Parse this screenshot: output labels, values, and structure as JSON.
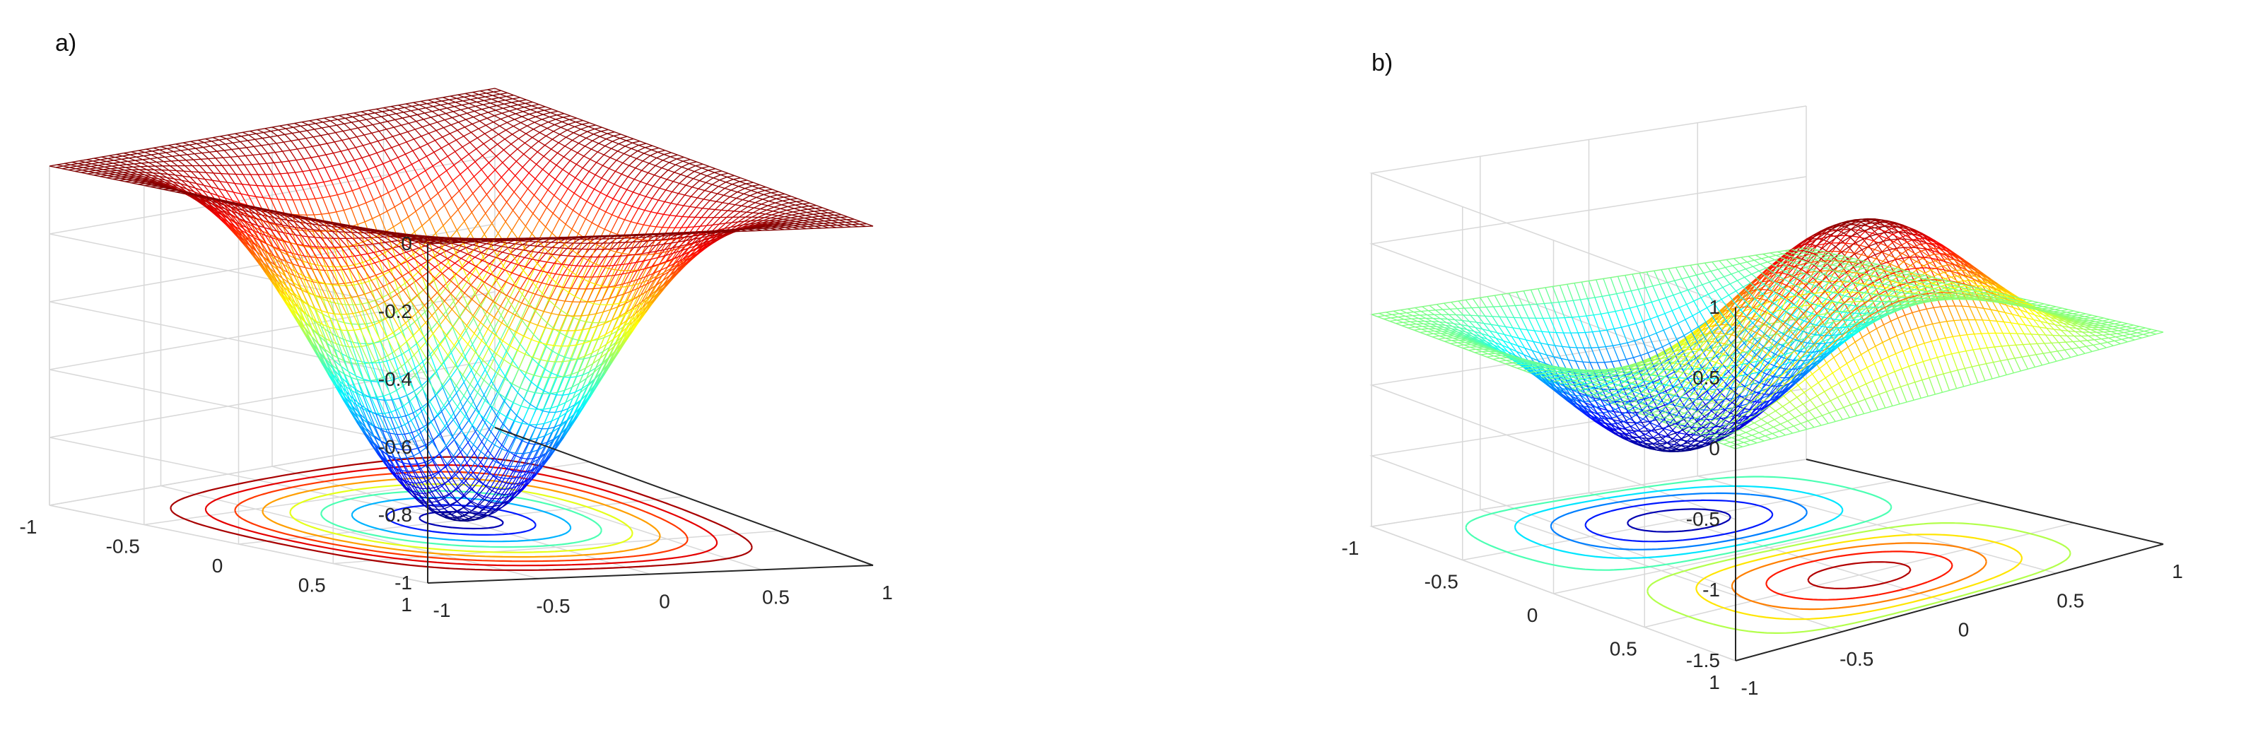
{
  "chart_data": [
    {
      "type": "surface",
      "panel_label": "a)",
      "function": "-cos(pi*x/2)^2 * cos(pi*y/2)^2",
      "x": [
        -1,
        1
      ],
      "y": [
        -1,
        1
      ],
      "xticks": [
        "-1",
        "-0.5",
        "0",
        "0.5",
        "1"
      ],
      "yticks": [
        "-1",
        "-0.5",
        "0",
        "0.5",
        "1"
      ],
      "zticks": [
        "0",
        "-0.2",
        "-0.4",
        "-0.6",
        "-0.8",
        "-1"
      ],
      "zlim": [
        -1,
        0
      ],
      "colormap": "jet",
      "contours_on_floor": true,
      "grid": true
    },
    {
      "type": "surface",
      "panel_label": "b)",
      "function": "cos(pi*x/2)^2 * sin(pi*y) (saddle-like bump with contours of two lobes)",
      "x": [
        -1,
        1
      ],
      "y": [
        -1,
        1
      ],
      "xticks": [
        "-1",
        "-0.5",
        "0",
        "0.5",
        "1"
      ],
      "yticks": [
        "-1",
        "-0.5",
        "0",
        "0.5",
        "1"
      ],
      "zticks": [
        "1",
        "0.5",
        "0",
        "-0.5",
        "-1",
        "-1.5"
      ],
      "zlim": [
        -1.5,
        1
      ],
      "colormap": "jet",
      "contours_on_floor": true,
      "grid": true
    }
  ]
}
